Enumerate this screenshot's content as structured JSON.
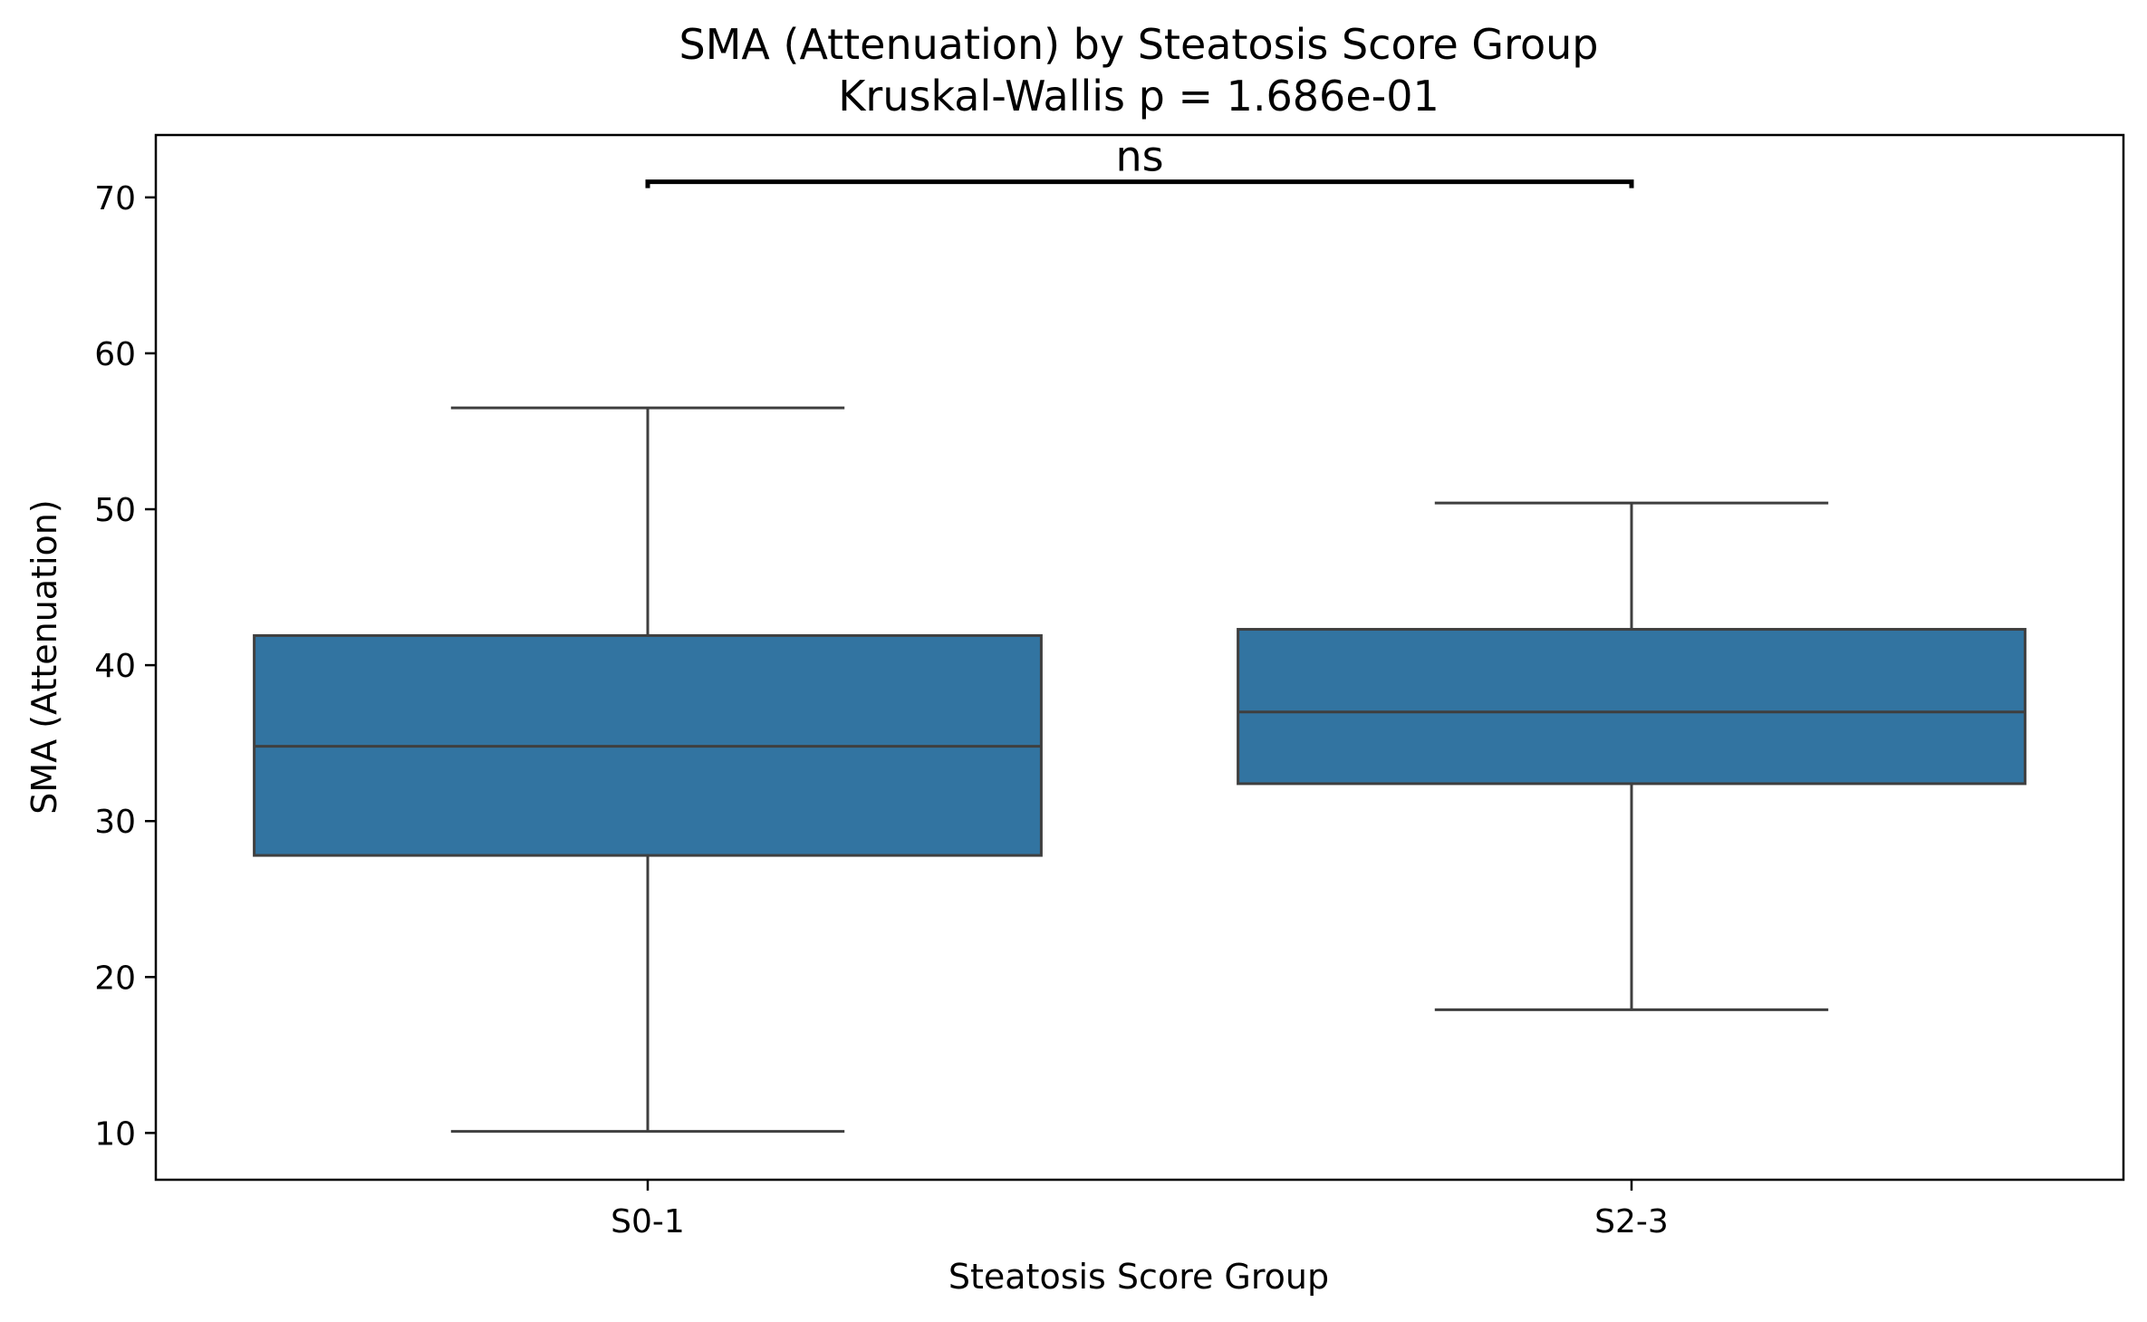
{
  "chart_data": {
    "type": "box",
    "title": "SMA (Attenuation) by Steatosis Score Group",
    "subtitle": "Kruskal-Wallis p = 1.686e-01",
    "xlabel": "Steatosis Score Group",
    "ylabel": "SMA (Attenuation)",
    "ylim": [
      7,
      74
    ],
    "yticks": [
      "10",
      "20",
      "30",
      "40",
      "50",
      "60",
      "70"
    ],
    "categories": [
      "S0-1",
      "S2-3"
    ],
    "boxes": [
      {
        "category": "S0-1",
        "whisker_low": 10.1,
        "q1": 27.8,
        "median": 34.8,
        "q3": 41.9,
        "whisker_high": 56.5
      },
      {
        "category": "S2-3",
        "whisker_low": 17.9,
        "q1": 32.4,
        "median": 37.0,
        "q3": 42.3,
        "whisker_high": 50.4
      }
    ],
    "annotation": {
      "text": "ns",
      "from": "S0-1",
      "to": "S2-3",
      "y": 71.0
    },
    "box_color": "#3274a1",
    "line_color": "#3f3f3f",
    "grid": false,
    "legend": "none"
  }
}
